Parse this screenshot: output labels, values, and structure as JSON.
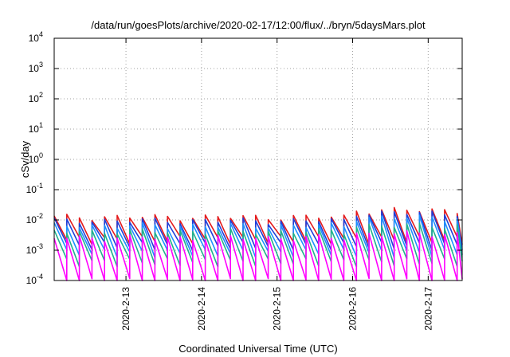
{
  "chart_data": {
    "type": "line",
    "title": "/data/run/goesPlots/archive/2020-02-17/12:00/flux/../bryn/5daysMars.plot",
    "xlabel": "Coordinated Universal Time (UTC)",
    "ylabel": "cSv/day",
    "yscale": "log",
    "ylim": [
      0.0001,
      10000
    ],
    "xlim": [
      -0.95,
      4.45
    ],
    "x_unit": "days relative to 2020-2-13",
    "grid": true,
    "yticks": [
      {
        "value": 0.0001,
        "base": "10",
        "exp": "-4"
      },
      {
        "value": 0.001,
        "base": "10",
        "exp": "-3"
      },
      {
        "value": 0.01,
        "base": "10",
        "exp": "-2"
      },
      {
        "value": 0.1,
        "base": "10",
        "exp": "-1"
      },
      {
        "value": 1,
        "base": "10",
        "exp": "0"
      },
      {
        "value": 10,
        "base": "10",
        "exp": "1"
      },
      {
        "value": 100,
        "base": "10",
        "exp": "2"
      },
      {
        "value": 1000,
        "base": "10",
        "exp": "3"
      },
      {
        "value": 10000,
        "base": "10",
        "exp": "4"
      }
    ],
    "xticks": [
      {
        "value": 0,
        "label": "2020-2-13"
      },
      {
        "value": 1,
        "label": "2020-2-14"
      },
      {
        "value": 2,
        "label": "2020-2-15"
      },
      {
        "value": 3,
        "label": "2020-2-16"
      },
      {
        "value": 4,
        "label": "2020-2-17"
      }
    ],
    "sawtooth": {
      "cycles_per_day": 6.0,
      "start": -0.95,
      "end": 4.45
    },
    "series": [
      {
        "color": "#e41a1c",
        "low": 0.0022,
        "high": 0.0125,
        "late_high": 0.021
      },
      {
        "color": "#1f3fd8",
        "low": 0.0014,
        "high": 0.0095,
        "late_high": 0.017
      },
      {
        "color": "#1e90ff",
        "low": 0.0008,
        "high": 0.0065,
        "late_high": 0.012
      },
      {
        "color": "#21b28c",
        "low": 0.0004,
        "high": 0.0042,
        "late_high": 0.0065
      },
      {
        "color": "#ff00ff",
        "low": 9e-05,
        "high": 0.0026,
        "late_high": 0.0035
      }
    ]
  }
}
